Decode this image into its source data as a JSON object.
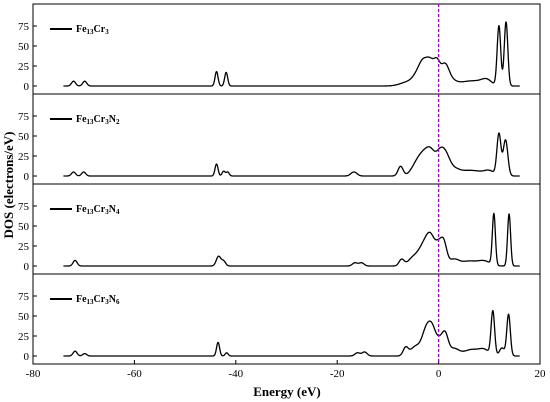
{
  "chart_data": {
    "type": "line",
    "xlabel": "Energy (eV)",
    "ylabel": "DOS (electrons/eV)",
    "xlim": [
      -80,
      20
    ],
    "x_ticks": [
      "-80",
      "-60",
      "-40",
      "-20",
      "0",
      "20"
    ],
    "ylim": [
      -8,
      88
    ],
    "y_ticks": [
      "0",
      "25",
      "50",
      "75"
    ],
    "fermi_level": 0,
    "fermi_line_color": "#9900cc",
    "line_color": "#000000",
    "grid": false,
    "legend_placement": "top-left",
    "panels": [
      {
        "legend": {
          "base": "Fe",
          "n1": "13",
          "el2": "Cr",
          "n2": "3",
          "el3": "N",
          "n3": ""
        },
        "range": [
          -74,
          16
        ],
        "peaks": [
          [
            -72.0,
            6,
            0.4
          ],
          [
            -69.8,
            6,
            0.4
          ],
          [
            -43.8,
            18,
            0.3
          ],
          [
            -41.9,
            17,
            0.3
          ],
          [
            -6.0,
            5,
            1.5
          ],
          [
            -4.0,
            13,
            1.0
          ],
          [
            -3.0,
            20,
            0.8
          ],
          [
            -1.6,
            28,
            0.8
          ],
          [
            -0.3,
            23,
            0.6
          ],
          [
            1.2,
            25,
            0.8
          ],
          [
            2.5,
            6,
            1.0
          ],
          [
            5.0,
            4,
            1.5
          ],
          [
            7.5,
            5,
            1.5
          ],
          [
            9.5,
            7,
            1.0
          ],
          [
            11.9,
            75,
            0.35
          ],
          [
            13.3,
            80,
            0.35
          ]
        ]
      },
      {
        "legend": {
          "base": "Fe",
          "n1": "13",
          "el2": "Cr",
          "n2": "3",
          "el3": "N",
          "n3": "2"
        },
        "range": [
          -74,
          16
        ],
        "peaks": [
          [
            -72.0,
            5,
            0.4
          ],
          [
            -70.0,
            5,
            0.4
          ],
          [
            -43.8,
            15,
            0.3
          ],
          [
            -42.4,
            6,
            0.3
          ],
          [
            -41.6,
            5,
            0.3
          ],
          [
            -17.0,
            3,
            0.5
          ],
          [
            -16.4,
            3,
            0.5
          ],
          [
            -7.5,
            12,
            0.5
          ],
          [
            -4.5,
            12,
            1.0
          ],
          [
            -3.0,
            22,
            1.0
          ],
          [
            -1.5,
            26,
            0.9
          ],
          [
            0.3,
            25,
            0.8
          ],
          [
            1.5,
            20,
            0.8
          ],
          [
            3.0,
            7,
            1.0
          ],
          [
            5.0,
            5,
            1.5
          ],
          [
            7.5,
            5,
            1.5
          ],
          [
            10.0,
            6,
            1.0
          ],
          [
            11.9,
            52,
            0.4
          ],
          [
            13.2,
            45,
            0.45
          ]
        ]
      },
      {
        "legend": {
          "base": "Fe",
          "n1": "13",
          "el2": "Cr",
          "n2": "3",
          "el3": "N",
          "n3": "4"
        },
        "range": [
          -74,
          16
        ],
        "peaks": [
          [
            -71.7,
            7,
            0.4
          ],
          [
            -43.4,
            12,
            0.45
          ],
          [
            -42.4,
            6,
            0.4
          ],
          [
            -16.5,
            4,
            0.5
          ],
          [
            -15.2,
            4,
            0.5
          ],
          [
            -7.3,
            8,
            0.5
          ],
          [
            -5.0,
            10,
            1.0
          ],
          [
            -3.0,
            22,
            1.0
          ],
          [
            -1.5,
            33,
            0.9
          ],
          [
            0.0,
            18,
            0.6
          ],
          [
            1.0,
            28,
            0.6
          ],
          [
            3.0,
            8,
            1.0
          ],
          [
            6.0,
            6,
            1.5
          ],
          [
            9.0,
            6,
            1.2
          ],
          [
            10.9,
            64,
            0.3
          ],
          [
            13.9,
            65,
            0.3
          ]
        ]
      },
      {
        "legend": {
          "base": "Fe",
          "n1": "13",
          "el2": "Cr",
          "n2": "3",
          "el3": "N",
          "n3": "6"
        },
        "range": [
          -74,
          16
        ],
        "peaks": [
          [
            -71.7,
            6,
            0.4
          ],
          [
            -69.8,
            3,
            0.4
          ],
          [
            -43.5,
            17,
            0.3
          ],
          [
            -41.8,
            4,
            0.3
          ],
          [
            -16.0,
            4,
            0.5
          ],
          [
            -14.6,
            5,
            0.5
          ],
          [
            -6.5,
            10,
            0.5
          ],
          [
            -4.5,
            12,
            1.0
          ],
          [
            -2.5,
            28,
            0.8
          ],
          [
            -1.2,
            32,
            0.8
          ],
          [
            0.3,
            14,
            0.6
          ],
          [
            1.3,
            25,
            0.6
          ],
          [
            3.0,
            9,
            1.0
          ],
          [
            6.5,
            8,
            1.5
          ],
          [
            9.0,
            7,
            1.0
          ],
          [
            10.7,
            55,
            0.35
          ],
          [
            12.5,
            10,
            0.5
          ],
          [
            13.8,
            52,
            0.35
          ]
        ]
      }
    ]
  }
}
